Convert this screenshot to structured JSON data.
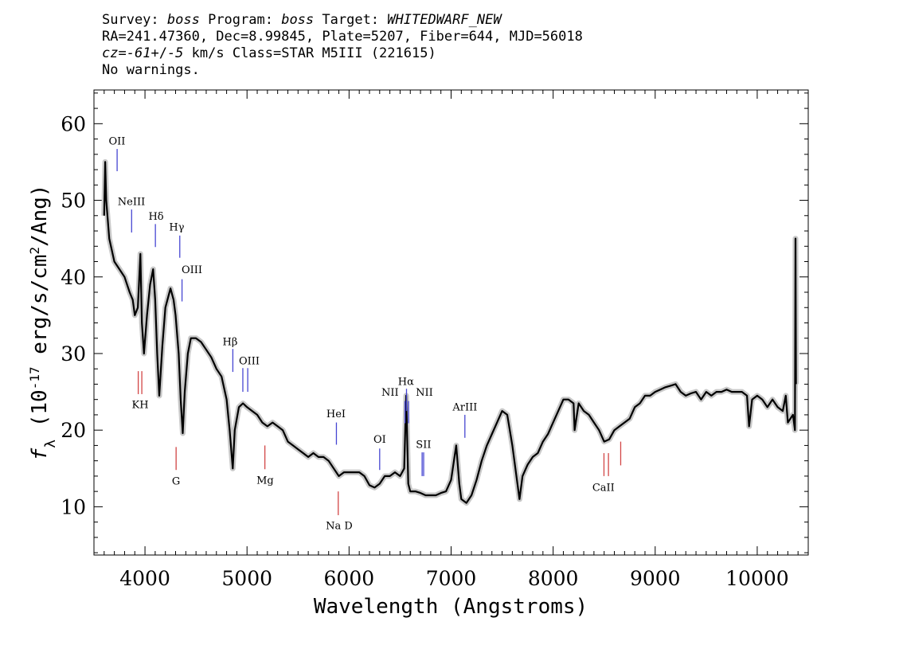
{
  "chart_data": {
    "type": "line",
    "title_lines": [
      [
        {
          "text": "Survey: ",
          "italic": false
        },
        {
          "text": "boss",
          "italic": true
        },
        {
          "text": " Program: ",
          "italic": false
        },
        {
          "text": "boss",
          "italic": true
        },
        {
          "text": " Target:  ",
          "italic": false
        },
        {
          "text": "WHITEDWARF_NEW",
          "italic": true
        }
      ],
      [
        {
          "text": "RA=241.47360, Dec=8.99845, Plate=5207, Fiber=644, MJD=56018",
          "italic": false
        }
      ],
      [
        {
          "text": "cz",
          "italic": true
        },
        {
          "text": "=",
          "italic": false
        },
        {
          "text": "-61",
          "italic": true
        },
        {
          "text": "+/",
          "italic": false
        },
        {
          "text": "-5",
          "italic": true
        },
        {
          "text": " km/s Class=STAR M5III (221615)",
          "italic": false
        }
      ],
      [
        {
          "text": "No warnings.",
          "italic": false
        }
      ]
    ],
    "xlabel": "Wavelength (Angstroms)",
    "ylabel": [
      {
        "text": "f",
        "style": "italic"
      },
      {
        "text": "λ",
        "style": "sub"
      },
      {
        "text": " (10",
        "style": "normal"
      },
      {
        "text": "-17",
        "style": "sup"
      },
      {
        "text": " erg/s/cm",
        "style": "normal"
      },
      {
        "text": "2",
        "style": "sup"
      },
      {
        "text": "/Ang)",
        "style": "normal"
      }
    ],
    "xlim": [
      3500,
      10500
    ],
    "ylim": [
      3.7,
      64.4
    ],
    "xticks": [
      4000,
      5000,
      6000,
      7000,
      8000,
      9000,
      10000
    ],
    "yticks": [
      10,
      20,
      30,
      40,
      50,
      60
    ],
    "color": "#000000",
    "x": [
      3600,
      3610,
      3620,
      3650,
      3700,
      3750,
      3800,
      3850,
      3880,
      3900,
      3930,
      3955,
      3970,
      3990,
      4020,
      4050,
      4080,
      4100,
      4120,
      4140,
      4170,
      4200,
      4250,
      4280,
      4300,
      4330,
      4350,
      4370,
      4390,
      4420,
      4450,
      4500,
      4550,
      4600,
      4650,
      4700,
      4750,
      4800,
      4830,
      4860,
      4880,
      4920,
      4960,
      5000,
      5050,
      5100,
      5150,
      5200,
      5250,
      5300,
      5350,
      5400,
      5450,
      5500,
      5550,
      5600,
      5650,
      5700,
      5750,
      5800,
      5850,
      5900,
      5950,
      6000,
      6050,
      6100,
      6150,
      6200,
      6250,
      6300,
      6350,
      6400,
      6450,
      6500,
      6540,
      6560,
      6580,
      6600,
      6650,
      6700,
      6750,
      6800,
      6850,
      6900,
      6950,
      7000,
      7050,
      7080,
      7100,
      7150,
      7200,
      7250,
      7300,
      7350,
      7400,
      7450,
      7500,
      7550,
      7600,
      7650,
      7670,
      7700,
      7750,
      7800,
      7850,
      7900,
      7950,
      8000,
      8050,
      8100,
      8150,
      8200,
      8210,
      8250,
      8300,
      8350,
      8400,
      8450,
      8500,
      8550,
      8600,
      8650,
      8700,
      8750,
      8800,
      8850,
      8900,
      8950,
      9000,
      9050,
      9100,
      9150,
      9200,
      9250,
      9300,
      9350,
      9400,
      9450,
      9500,
      9550,
      9600,
      9650,
      9700,
      9750,
      9800,
      9850,
      9900,
      9920,
      9950,
      10000,
      10050,
      10100,
      10150,
      10200,
      10250,
      10280,
      10300,
      10350,
      10370,
      10375,
      10380
    ],
    "values": [
      48,
      55,
      50,
      45,
      42,
      41,
      40,
      38,
      37,
      35,
      36,
      43,
      34,
      30,
      35,
      39,
      41,
      37,
      30,
      24.5,
      31,
      36,
      38.5,
      37,
      35,
      30,
      24,
      19.6,
      25,
      30,
      32,
      32,
      31.5,
      30.5,
      29.5,
      28,
      27,
      24,
      20,
      15,
      20,
      23,
      23.5,
      23,
      22.5,
      22,
      21,
      20.5,
      21,
      20.5,
      20,
      18.5,
      18,
      17.5,
      17,
      16.5,
      17,
      16.5,
      16.5,
      16,
      15,
      14,
      14.5,
      14.5,
      14.5,
      14.5,
      14,
      12.8,
      12.5,
      13,
      14,
      14,
      14.5,
      14,
      15,
      24.5,
      13,
      12,
      12,
      11.8,
      11.5,
      11.5,
      11.5,
      11.8,
      12,
      13.5,
      18,
      13,
      11,
      10.5,
      11.5,
      13.5,
      16,
      18,
      19.5,
      21,
      22.5,
      22,
      18,
      13,
      11,
      14,
      15.5,
      16.5,
      17,
      18.5,
      19.5,
      21,
      22.5,
      24,
      24,
      23.5,
      20,
      23.5,
      22.5,
      22,
      21,
      20,
      18.5,
      18.8,
      20,
      20.5,
      21,
      21.5,
      23,
      23.5,
      24.5,
      24.5,
      25,
      25.3,
      25.6,
      25.8,
      26,
      25,
      24.5,
      24.8,
      25,
      24,
      25,
      24.5,
      25,
      25,
      25.3,
      25,
      25,
      25,
      24.5,
      20.5,
      24,
      24.5,
      24,
      23,
      24,
      23,
      22.5,
      24.5,
      21,
      22,
      20,
      45,
      26
    ],
    "annotations": [
      {
        "label": "OII",
        "color": "#4646d2",
        "label_x": 3726,
        "label_y": 57.8,
        "marks": [
          {
            "x": 3727,
            "y": [
              53.8,
              56.7
            ]
          }
        ]
      },
      {
        "label": "NeIII",
        "color": "#4646d2",
        "label_x": 3867,
        "label_y": 49.9,
        "marks": [
          {
            "x": 3869,
            "y": [
              45.8,
              48.8
            ]
          }
        ]
      },
      {
        "label": "Hδ",
        "color": "#4646d2",
        "label_x": 4109,
        "label_y": 48.0,
        "marks": [
          {
            "x": 4102,
            "y": [
              43.9,
              46.9
            ]
          }
        ]
      },
      {
        "label": "Hγ",
        "color": "#4646d2",
        "label_x": 4311,
        "label_y": 46.6,
        "marks": [
          {
            "x": 4341,
            "y": [
              42.5,
              45.4
            ]
          }
        ]
      },
      {
        "label": "OIII",
        "color": "#4646d2",
        "label_x": 4460,
        "label_y": 41.0,
        "marks": [
          {
            "x": 4363,
            "y": [
              36.8,
              39.7
            ]
          }
        ]
      },
      {
        "label": "Hβ",
        "color": "#4646d2",
        "label_x": 4834,
        "label_y": 31.6,
        "marks": [
          {
            "x": 4861,
            "y": [
              27.6,
              30.6
            ]
          }
        ]
      },
      {
        "label": "OIII",
        "color": "#4646d2",
        "label_x": 5022,
        "label_y": 29.1,
        "marks": [
          {
            "x": 4959,
            "y": [
              25.0,
              28.1
            ]
          },
          {
            "x": 5007,
            "y": [
              25.0,
              28.1
            ]
          }
        ]
      },
      {
        "label": "HeI",
        "color": "#4646d2",
        "label_x": 5872,
        "label_y": 22.2,
        "marks": [
          {
            "x": 5876,
            "y": [
              18.1,
              21.0
            ]
          }
        ]
      },
      {
        "label": "OI",
        "color": "#4646d2",
        "label_x": 6301,
        "label_y": 18.9,
        "marks": [
          {
            "x": 6300,
            "y": [
              14.8,
              17.6
            ]
          }
        ]
      },
      {
        "label": "NII",
        "color": "#4646d2",
        "label_x": 6402,
        "label_y": 25.0,
        "marks": [
          {
            "x": 6548,
            "y": [
              20.9,
              23.8
            ]
          }
        ]
      },
      {
        "label": "Hα",
        "color": "#4646d2",
        "label_x": 6558,
        "label_y": 26.4,
        "marks": [
          {
            "x": 6563,
            "y": [
              22.5,
              25.4
            ]
          }
        ]
      },
      {
        "label": "NII",
        "color": "#4646d2",
        "label_x": 6738,
        "label_y": 25.0,
        "marks": [
          {
            "x": 6583,
            "y": [
              20.9,
              23.8
            ]
          }
        ]
      },
      {
        "label": "SII",
        "color": "#4646d2",
        "label_x": 6730,
        "label_y": 18.2,
        "marks": [
          {
            "x": 6716,
            "y": [
              14.0,
              17.1
            ]
          },
          {
            "x": 6731,
            "y": [
              14.0,
              17.1
            ]
          }
        ]
      },
      {
        "label": "ArIII",
        "color": "#4646d2",
        "label_x": 7136,
        "label_y": 23.1,
        "marks": [
          {
            "x": 7135,
            "y": [
              19.0,
              22.0
            ]
          }
        ]
      },
      {
        "label": "KH",
        "color": "#d24646",
        "label_x": 3953,
        "label_y": 23.4,
        "marks": [
          {
            "x": 3934,
            "y": [
              24.7,
              27.7
            ]
          },
          {
            "x": 3969,
            "y": [
              24.7,
              27.7
            ]
          }
        ]
      },
      {
        "label": "G",
        "color": "#d24646",
        "label_x": 4304,
        "label_y": 13.4,
        "marks": [
          {
            "x": 4305,
            "y": [
              14.8,
              17.8
            ]
          }
        ]
      },
      {
        "label": "Mg",
        "color": "#d24646",
        "label_x": 5177,
        "label_y": 13.5,
        "marks": [
          {
            "x": 5175,
            "y": [
              14.9,
              18.0
            ]
          }
        ]
      },
      {
        "label": "Na D",
        "color": "#d24646",
        "label_x": 5903,
        "label_y": 7.6,
        "marks": [
          {
            "x": 5894,
            "y": [
              8.9,
              12.0
            ]
          }
        ]
      },
      {
        "label": "CaII",
        "color": "#d24646",
        "label_x": 8493,
        "label_y": 12.6,
        "marks": [
          {
            "x": 8498,
            "y": [
              14.0,
              17.0
            ]
          },
          {
            "x": 8542,
            "y": [
              14.0,
              17.0
            ]
          },
          {
            "x": 8662,
            "y": [
              15.4,
              18.5
            ]
          }
        ]
      }
    ]
  }
}
